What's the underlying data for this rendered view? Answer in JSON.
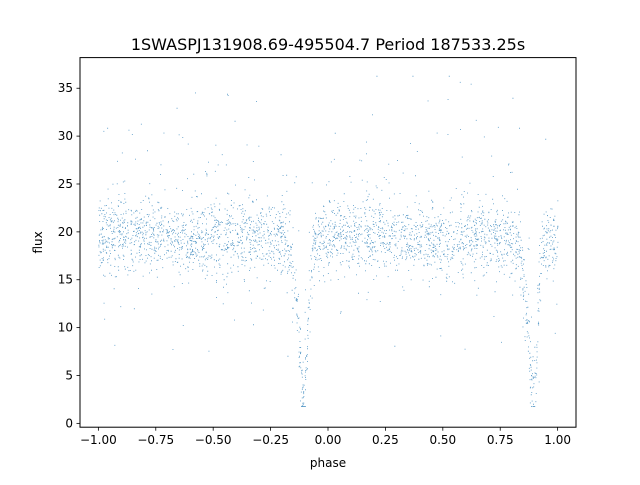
{
  "chart_data": {
    "type": "scatter",
    "title": "1SWASPJ131908.69-495504.7 Period 187533.25s",
    "xlabel": "phase",
    "ylabel": "flux",
    "xlim": [
      -1.08,
      1.08
    ],
    "ylim": [
      -0.4,
      38.2
    ],
    "x_ticks": [
      -1.0,
      -0.75,
      -0.5,
      -0.25,
      0.0,
      0.25,
      0.5,
      0.75,
      1.0
    ],
    "x_tick_labels": [
      "−1.00",
      "−0.75",
      "−0.50",
      "−0.25",
      "0.00",
      "0.25",
      "0.50",
      "0.75",
      "1.00"
    ],
    "y_ticks": [
      0,
      5,
      10,
      15,
      20,
      25,
      30,
      35
    ],
    "y_tick_labels": [
      "0",
      "5",
      "10",
      "15",
      "20",
      "25",
      "30",
      "35"
    ],
    "grid": false,
    "legend": "none",
    "marker_color": "#1f77b4",
    "series": [
      {
        "profile": [
          [
            -1.0,
            19.5
          ],
          [
            -0.9,
            19.8
          ],
          [
            -0.8,
            19.8
          ],
          [
            -0.7,
            19.5
          ],
          [
            -0.6,
            19.0
          ],
          [
            -0.5,
            19.2
          ],
          [
            -0.4,
            19.5
          ],
          [
            -0.3,
            19.6
          ],
          [
            -0.2,
            19.4
          ],
          [
            -0.17,
            18.0
          ],
          [
            -0.15,
            15.0
          ],
          [
            -0.13,
            10.0
          ],
          [
            -0.115,
            4.0
          ],
          [
            -0.105,
            2.0
          ],
          [
            -0.095,
            6.0
          ],
          [
            -0.085,
            13.0
          ],
          [
            -0.07,
            18.0
          ],
          [
            -0.05,
            19.2
          ],
          [
            0.0,
            19.5
          ],
          [
            0.1,
            19.8
          ],
          [
            0.2,
            19.8
          ],
          [
            0.3,
            19.5
          ],
          [
            0.4,
            19.0
          ],
          [
            0.5,
            19.2
          ],
          [
            0.6,
            19.5
          ],
          [
            0.7,
            19.6
          ],
          [
            0.8,
            19.4
          ],
          [
            0.83,
            18.0
          ],
          [
            0.85,
            15.0
          ],
          [
            0.87,
            10.0
          ],
          [
            0.885,
            4.0
          ],
          [
            0.895,
            2.0
          ],
          [
            0.905,
            6.0
          ],
          [
            0.915,
            13.0
          ],
          [
            0.93,
            18.0
          ],
          [
            0.95,
            19.2
          ],
          [
            1.0,
            19.5
          ]
        ]
      }
    ]
  }
}
